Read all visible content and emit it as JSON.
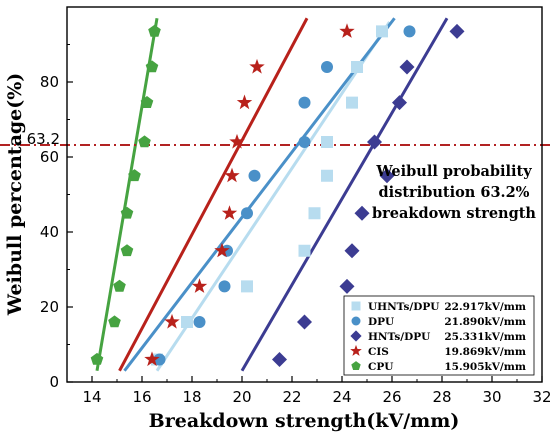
{
  "chart_data": {
    "type": "scatter",
    "xlabel": "Breakdown strength(kV/mm)",
    "ylabel": "Weibull percentage(%)",
    "xlim": [
      13,
      32
    ],
    "ylim": [
      0,
      100
    ],
    "xticks": [
      14,
      16,
      18,
      20,
      22,
      24,
      26,
      28,
      30,
      32
    ],
    "yticks": [
      0,
      20,
      40,
      60,
      80
    ],
    "reference_line": {
      "y": 63.2,
      "label": "63.2",
      "color": "#b22222",
      "style": "dash-dot"
    },
    "annotation": [
      "Weibull probability",
      "distribution 63.2%",
      "breakdown strength"
    ],
    "legend_position": "bottom-right",
    "series": [
      {
        "name": "UHNTs/DPU",
        "value_label": "22.917kV/mm",
        "marker": "square",
        "color": "#b7dcef",
        "points": [
          [
            16.6,
            6
          ],
          [
            17.8,
            16
          ],
          [
            20.2,
            25.5
          ],
          [
            22.5,
            35
          ],
          [
            22.9,
            45
          ],
          [
            23.4,
            55
          ],
          [
            23.4,
            64
          ],
          [
            24.4,
            74.5
          ],
          [
            24.6,
            84
          ],
          [
            25.6,
            93.5
          ]
        ],
        "fit": [
          [
            16.6,
            3
          ],
          [
            25.9,
            96
          ]
        ]
      },
      {
        "name": "DPU",
        "value_label": "21.890kV/mm",
        "marker": "circle",
        "color": "#4a90c8",
        "points": [
          [
            16.7,
            6
          ],
          [
            18.3,
            16
          ],
          [
            19.3,
            25.5
          ],
          [
            19.4,
            35
          ],
          [
            20.2,
            45
          ],
          [
            20.5,
            55
          ],
          [
            22.5,
            64
          ],
          [
            22.5,
            74.5
          ],
          [
            23.4,
            84
          ],
          [
            26.7,
            93.5
          ]
        ],
        "fit": [
          [
            15.3,
            3
          ],
          [
            26.1,
            97
          ]
        ]
      },
      {
        "name": "HNTs/DPU",
        "value_label": "25.331kV/mm",
        "marker": "diamond",
        "color": "#3c3c92",
        "points": [
          [
            21.5,
            6
          ],
          [
            22.5,
            16
          ],
          [
            24.2,
            25.5
          ],
          [
            24.4,
            35
          ],
          [
            24.8,
            45
          ],
          [
            25.8,
            55
          ],
          [
            25.3,
            64
          ],
          [
            26.3,
            74.5
          ],
          [
            26.6,
            84
          ],
          [
            28.6,
            93.5
          ]
        ],
        "fit": [
          [
            20.0,
            3
          ],
          [
            28.2,
            97
          ]
        ]
      },
      {
        "name": "CIS",
        "value_label": "19.869kV/mm",
        "marker": "star",
        "color": "#b8211b",
        "points": [
          [
            16.4,
            6
          ],
          [
            17.2,
            16
          ],
          [
            18.3,
            25.5
          ],
          [
            19.2,
            35
          ],
          [
            19.5,
            45
          ],
          [
            19.6,
            55
          ],
          [
            19.8,
            64
          ],
          [
            20.1,
            74.5
          ],
          [
            20.6,
            84
          ],
          [
            24.2,
            93.5
          ]
        ],
        "fit": [
          [
            15.1,
            3
          ],
          [
            22.6,
            97
          ]
        ]
      },
      {
        "name": "CPU",
        "value_label": "15.905kV/mm",
        "marker": "pentagon",
        "color": "#46a341",
        "points": [
          [
            14.2,
            6
          ],
          [
            14.9,
            16
          ],
          [
            15.1,
            25.5
          ],
          [
            15.4,
            35
          ],
          [
            15.4,
            45
          ],
          [
            15.7,
            55
          ],
          [
            16.1,
            64
          ],
          [
            16.2,
            74.5
          ],
          [
            16.4,
            84
          ],
          [
            16.5,
            93.5
          ]
        ],
        "fit": [
          [
            14.2,
            3
          ],
          [
            16.6,
            97
          ]
        ]
      }
    ]
  }
}
